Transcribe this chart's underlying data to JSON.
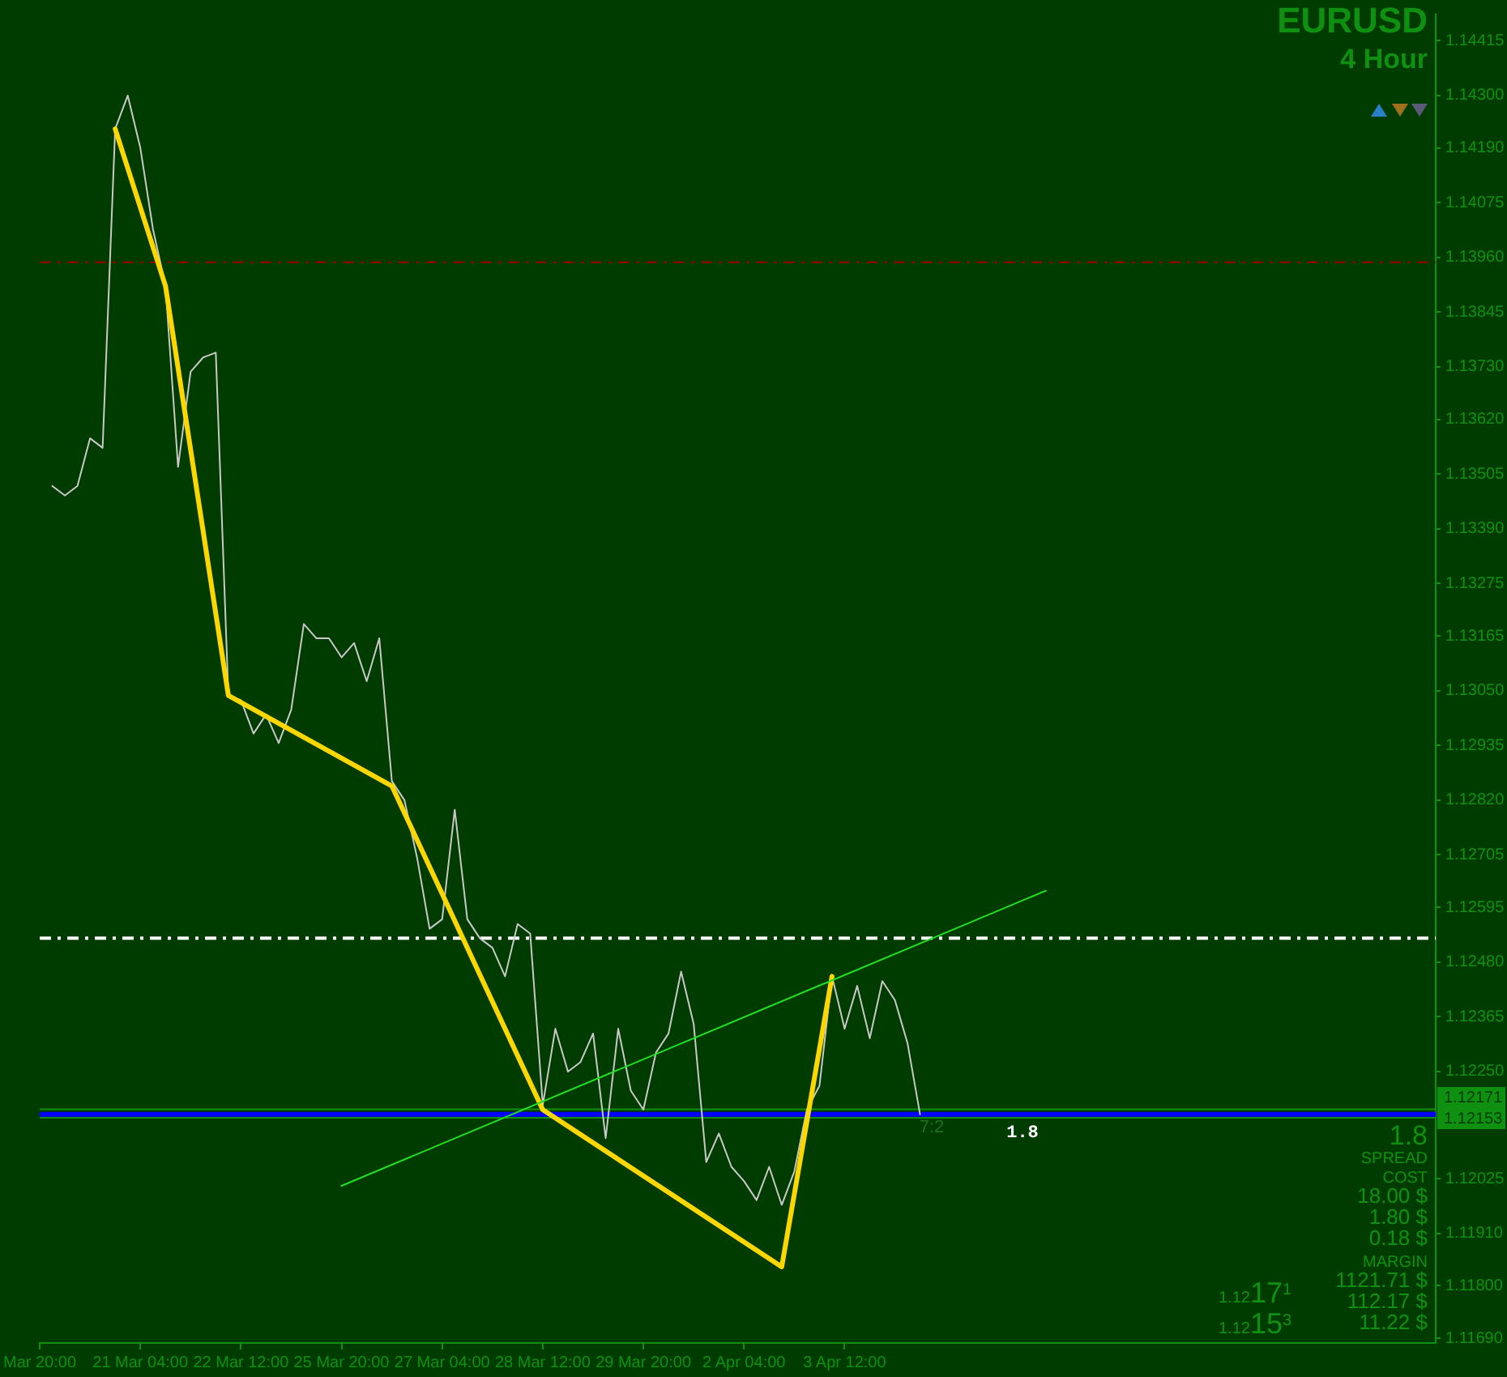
{
  "chart_data": {
    "type": "line",
    "title": "EURUSD",
    "subtitle": "4 Hour",
    "categories": [
      "Mar 20:00",
      null,
      null,
      null,
      null,
      null,
      null,
      null,
      "21 Mar 04:00",
      null,
      null,
      null,
      null,
      null,
      null,
      null,
      "22 Mar 12:00",
      null,
      null,
      null,
      null,
      null,
      null,
      null,
      "25 Mar 20:00",
      null,
      null,
      null,
      null,
      null,
      null,
      null,
      "27 Mar 04:00",
      null,
      null,
      null,
      null,
      null,
      null,
      null,
      "28 Mar 12:00",
      null,
      null,
      null,
      null,
      null,
      null,
      null,
      "29 Mar 20:00",
      null,
      null,
      null,
      null,
      null,
      null,
      null,
      "2 Apr 04:00",
      null,
      null,
      null,
      null,
      null,
      null,
      null,
      "3 Apr 12:00",
      null,
      null,
      null,
      null,
      null,
      null,
      null,
      null,
      null,
      null,
      null,
      null,
      null,
      null,
      null,
      null,
      null,
      null,
      null,
      null,
      null,
      null,
      null,
      null,
      null,
      null,
      null,
      null,
      null,
      null,
      null,
      null,
      null,
      null,
      null,
      null,
      null,
      null,
      null,
      null,
      null,
      null,
      null,
      null,
      null,
      null,
      null
    ],
    "series": [
      {
        "values": [
          null,
          1.1348,
          1.1346,
          1.1348,
          1.1358,
          1.1356,
          1.1423,
          1.143,
          1.1419,
          1.1402,
          1.139,
          1.1352,
          1.1372,
          1.1375,
          1.1376,
          1.1304,
          1.1303,
          1.1296,
          1.13,
          1.1294,
          1.1301,
          1.1319,
          1.1316,
          1.1316,
          1.1312,
          1.1315,
          1.1307,
          1.1316,
          1.1286,
          1.1282,
          1.127,
          1.1255,
          1.1257,
          1.128,
          1.1257,
          1.1253,
          1.1251,
          1.1245,
          1.1256,
          1.1254,
          1.1218,
          1.1234,
          1.1225,
          1.1227,
          1.1233,
          1.1211,
          1.1234,
          1.1221,
          1.1217,
          1.1229,
          1.1233,
          1.1246,
          1.1235,
          1.1206,
          1.1212,
          1.1205,
          1.1202,
          1.1198,
          1.1205,
          1.1197,
          1.1204,
          1.1217,
          1.1222,
          1.1245,
          1.1234,
          1.1243,
          1.1232,
          1.1244,
          1.124,
          1.1231,
          1.1216,
          null,
          null,
          null,
          null,
          null,
          null,
          null,
          null,
          null,
          null,
          null,
          null,
          null,
          null,
          null,
          null,
          null,
          null,
          null,
          null,
          null,
          null,
          null,
          null,
          null,
          null,
          null,
          null,
          null,
          null,
          null,
          null,
          null,
          null,
          null,
          null,
          null,
          null,
          null,
          null,
          null
        ],
        "color": "#c8c8c8"
      },
      {
        "type": "line",
        "values": [
          null,
          null,
          null,
          null,
          null,
          null,
          1.1423,
          null,
          null,
          null,
          1.139,
          null,
          null,
          null,
          null,
          1.1304,
          null,
          null,
          null,
          null,
          null,
          null,
          null,
          null,
          null,
          null,
          null,
          null,
          1.1285,
          null,
          null,
          null,
          null,
          null,
          null,
          null,
          null,
          null,
          null,
          null,
          1.1217,
          null,
          null,
          null,
          null,
          null,
          null,
          null,
          null,
          null,
          null,
          null,
          null,
          null,
          null,
          null,
          null,
          null,
          null,
          1.1184,
          null,
          null,
          null,
          1.1245,
          null,
          null,
          null,
          null,
          null,
          null,
          null,
          null,
          null,
          null,
          null,
          null,
          null,
          null,
          null,
          null,
          null,
          null,
          null,
          null,
          null,
          null,
          null,
          null,
          null,
          null,
          null,
          null,
          null,
          null,
          null,
          null,
          null,
          null,
          null,
          null,
          null,
          null,
          null,
          null,
          null,
          null,
          null,
          null,
          null,
          null,
          null,
          null
        ],
        "color": "#ffd700"
      },
      {
        "type": "line",
        "values": [
          null,
          null,
          null,
          null,
          null,
          null,
          null,
          null,
          null,
          null,
          null,
          null,
          null,
          null,
          null,
          null,
          null,
          null,
          null,
          null,
          null,
          null,
          null,
          null,
          1.1201,
          null,
          null,
          null,
          null,
          null,
          null,
          null,
          null,
          null,
          null,
          null,
          null,
          null,
          null,
          null,
          null,
          null,
          null,
          null,
          null,
          null,
          null,
          null,
          null,
          null,
          null,
          null,
          null,
          null,
          null,
          null,
          null,
          null,
          null,
          null,
          null,
          null,
          null,
          null,
          null,
          null,
          null,
          null,
          null,
          null,
          null,
          null,
          null,
          null,
          null,
          null,
          null,
          null,
          null,
          null,
          1.1263,
          null,
          null,
          null,
          null,
          null,
          null,
          null,
          null,
          null,
          null,
          null,
          null,
          null,
          null,
          null,
          null,
          null,
          null,
          null,
          null,
          null,
          null,
          null,
          null,
          null,
          null,
          null,
          null,
          null,
          null,
          null
        ],
        "color": "#22e022"
      }
    ],
    "ylim": [
      1.1168,
      1.1447
    ],
    "yticks": [
      1.14415,
      {
        "value": 1.143,
        "label": "1.14300"
      },
      {
        "value": 1.1419,
        "label": "1.14190"
      },
      1.14075,
      {
        "value": 1.1396,
        "label": "1.13960"
      },
      1.13845,
      {
        "value": 1.1373,
        "label": "1.13730"
      },
      {
        "value": 1.1362,
        "label": "1.13620"
      },
      1.13505,
      {
        "value": 1.1339,
        "label": "1.13390"
      },
      1.13275,
      1.13165,
      {
        "value": 1.1305,
        "label": "1.13050"
      },
      1.12935,
      {
        "value": 1.1282,
        "label": "1.12820"
      },
      1.12705,
      1.12595,
      {
        "value": 1.1248,
        "label": "1.12480"
      },
      1.12365,
      {
        "value": 1.1225,
        "label": "1.12250"
      },
      1.12025,
      {
        "value": 1.1191,
        "label": "1.11910"
      },
      {
        "value": 1.118,
        "label": "1.11800"
      },
      {
        "value": 1.1169,
        "label": "1.11690"
      }
    ],
    "ref_lines": [
      {
        "axis": "y",
        "value": 1.1395,
        "color": "#a00000",
        "line_style": "dashed"
      },
      {
        "axis": "y",
        "value": 1.1253,
        "color": "#ffffff",
        "line_style": "dashed"
      },
      {
        "axis": "y",
        "value": 1.1216,
        "color": "#0000ff"
      },
      {
        "axis": "y",
        "value": 1.12171,
        "label": "1.12171",
        "color": "#109010"
      },
      {
        "axis": "y",
        "value": 1.12153,
        "label": "1.12153",
        "color": "#109010"
      }
    ],
    "annotations": [
      "7:2",
      "1.8",
      "1.8",
      "SPREAD",
      "COST",
      "18.00 $",
      "1.80 $",
      "0.18 $",
      "MARGIN",
      "1121.71 $",
      "112.17 $",
      "11.22 $",
      "1.1217$^{1}$",
      "1.1215$^{3}$"
    ],
    "grid": false,
    "legend": false,
    "marker": "none"
  }
}
